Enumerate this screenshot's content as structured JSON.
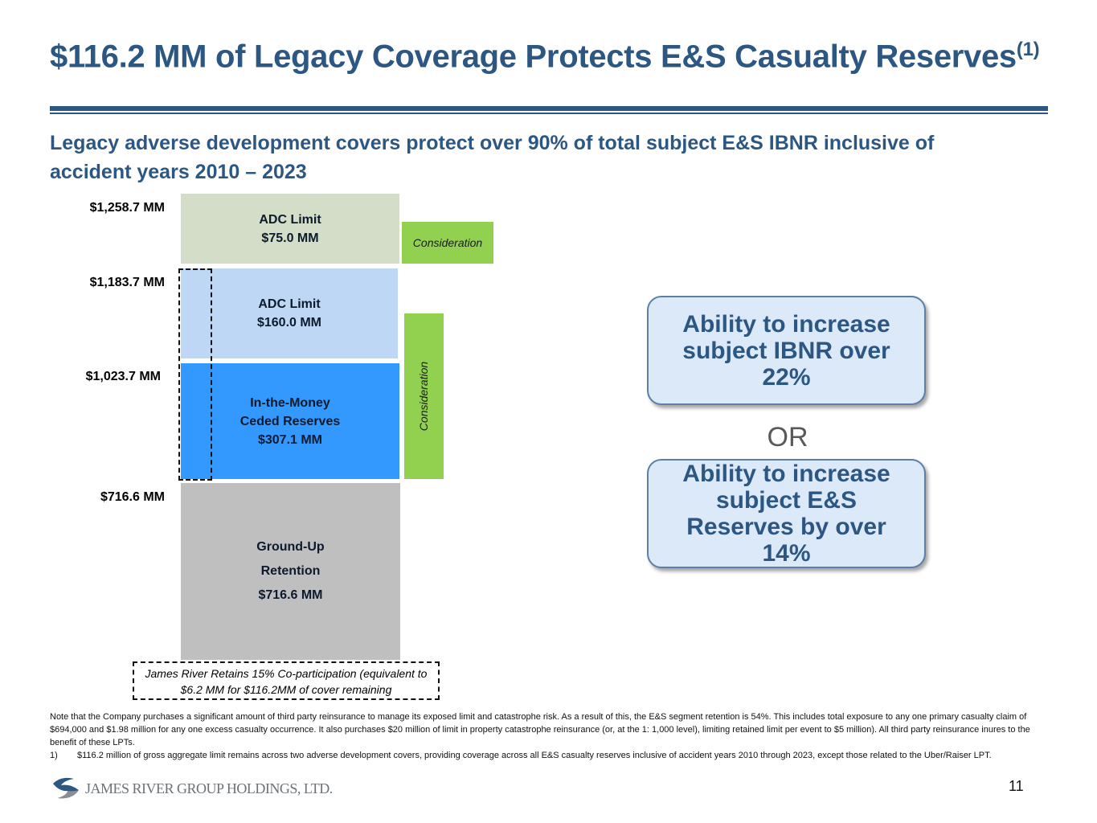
{
  "title": {
    "text": "$116.2 MM of Legacy Coverage Protects E&S Casualty Reserves",
    "superscript": "(1)"
  },
  "subtitle": "Legacy adverse development covers protect over 90% of total subject E&S IBNR inclusive of accident years 2010 – 2023",
  "levels": [
    "$1,258.7 MM",
    "$1,183.7 MM",
    "$1,023.7 MM",
    "$716.6 MM"
  ],
  "blocks": {
    "adc75": {
      "line1": "ADC Limit",
      "line2": "$75.0 MM",
      "color": "#d4ddc8"
    },
    "adc160": {
      "line1": "ADC Limit",
      "line2": "$160.0 MM",
      "color": "#bdd7f5"
    },
    "itm": {
      "line1": "In-the-Money",
      "line2": "Ceded Reserves",
      "line3": "$307.1 MM",
      "color": "#3399ff"
    },
    "ground": {
      "line1": "Ground-Up",
      "line2": "Retention",
      "line3": "$716.6 MM",
      "color": "#bfbfbf"
    }
  },
  "consideration": {
    "top": "Consideration",
    "side": "Consideration",
    "color": "#92d050"
  },
  "coparticipation": "James River Retains 15% Co-participation (equivalent to $6.2 MM for $116.2MM of cover remaining",
  "callouts": [
    "Ability to increase subject IBNR over 22%",
    "Ability to increase subject E&S Reserves by over 14%"
  ],
  "or_label": "OR",
  "note": "Note that the Company purchases a significant amount of third party reinsurance to manage its exposed limit and catastrophe risk.  As a result of this, the E&S segment retention is 54%.  This includes total exposure to any one primary casualty claim of $694,000 and $1.98 million for any one excess casualty occurrence.  It also purchases $20 million of limit in property catastrophe reinsurance (or, at the 1: 1,000 level), limiting retained limit per event to $5 million). All third party reinsurance inures to the benefit of these LPTs.",
  "footnote": {
    "marker": "1)",
    "text": "$116.2 million of gross aggregate limit remains across two adverse development covers, providing coverage across all E&S casualty reserves inclusive of accident years 2010 through 2023, except those related to the Uber/Raiser LPT."
  },
  "logo_text": "JAMES RIVER GROUP HOLDINGS, LTD.",
  "page_number": "11",
  "colors": {
    "brand": "#2c5783"
  }
}
